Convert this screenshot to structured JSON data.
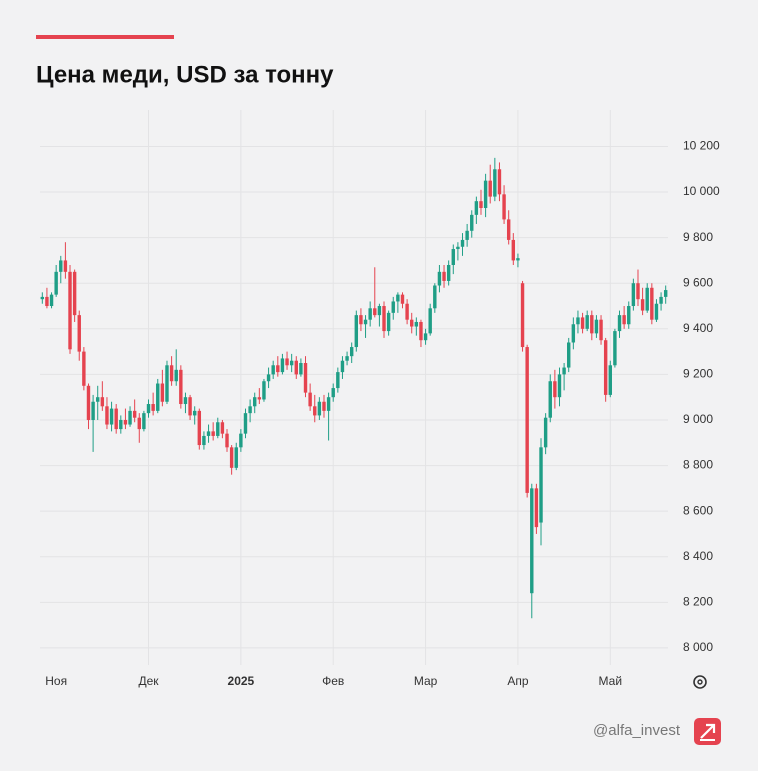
{
  "chart_data": {
    "type": "candlestick",
    "title": "Цена меди, USD за тонну",
    "footer": "@alfa_invest",
    "up_color": "#1f9e86",
    "down_color": "#e5434f",
    "grid": true,
    "ylim": [
      7925,
      10360
    ],
    "yticks": [
      {
        "value": 8000,
        "label": "8 000"
      },
      {
        "value": 8200,
        "label": "8 200"
      },
      {
        "value": 8400,
        "label": "8 400"
      },
      {
        "value": 8600,
        "label": "8 600"
      },
      {
        "value": 8800,
        "label": "8 800"
      },
      {
        "value": 9000,
        "label": "9 000"
      },
      {
        "value": 9200,
        "label": "9 200"
      },
      {
        "value": 9400,
        "label": "9 400"
      },
      {
        "value": 9600,
        "label": "9 600"
      },
      {
        "value": 9800,
        "label": "9 800"
      },
      {
        "value": 10000,
        "label": "10 000"
      },
      {
        "value": 10200,
        "label": "10 200"
      }
    ],
    "categories": [
      null,
      null,
      null,
      "Ноя",
      null,
      null,
      null,
      null,
      null,
      null,
      null,
      null,
      null,
      null,
      null,
      null,
      null,
      null,
      null,
      null,
      null,
      null,
      null,
      "Дек",
      null,
      null,
      null,
      null,
      null,
      null,
      null,
      null,
      null,
      null,
      null,
      null,
      null,
      null,
      null,
      null,
      null,
      null,
      null,
      "2025",
      null,
      null,
      null,
      null,
      null,
      null,
      null,
      null,
      null,
      null,
      null,
      null,
      null,
      null,
      null,
      null,
      null,
      null,
      null,
      "Фев",
      null,
      null,
      null,
      null,
      null,
      null,
      null,
      null,
      null,
      null,
      null,
      null,
      null,
      null,
      null,
      null,
      null,
      null,
      null,
      "Мар",
      null,
      null,
      null,
      null,
      null,
      null,
      null,
      null,
      null,
      null,
      null,
      null,
      null,
      null,
      null,
      null,
      null,
      null,
      null,
      "Апр",
      null,
      null,
      null,
      null,
      null,
      null,
      null,
      null,
      null,
      null,
      null,
      null,
      null,
      null,
      null,
      null,
      null,
      null,
      null,
      "Май",
      null,
      null,
      null,
      null,
      null,
      null,
      null,
      null,
      null,
      null,
      null,
      null
    ],
    "ohlc": {
      "open": [
        9530,
        9540,
        9500,
        9550,
        9650,
        9700,
        9650,
        9650,
        9460,
        9300,
        9150,
        9000,
        9080,
        9100,
        9060,
        8980,
        9050,
        8960,
        9000,
        8980,
        9040,
        9010,
        8960,
        9030,
        9070,
        9040,
        9160,
        9080,
        9240,
        9170,
        9220,
        9070,
        9100,
        9020,
        9040,
        8890,
        8930,
        8950,
        8930,
        8990,
        8940,
        8880,
        8790,
        8880,
        8940,
        9030,
        9060,
        9100,
        9090,
        9170,
        9200,
        9240,
        9210,
        9270,
        9240,
        9260,
        9200,
        9250,
        9120,
        9060,
        9020,
        9080,
        9040,
        9100,
        9140,
        9210,
        9260,
        9280,
        9320,
        9460,
        9420,
        9440,
        9490,
        9460,
        9500,
        9390,
        9470,
        9520,
        9550,
        9510,
        9440,
        9410,
        9430,
        9350,
        9380,
        9490,
        9590,
        9650,
        9610,
        9680,
        9750,
        9760,
        9790,
        9830,
        9900,
        9960,
        9930,
        10050,
        9980,
        10100,
        9990,
        9880,
        9790,
        9700,
        9600,
        9320,
        8240,
        8700,
        8550,
        8880,
        9010,
        9170,
        9100,
        9200,
        9230,
        9340,
        9420,
        9450,
        9400,
        9460,
        9380,
        9440,
        9350,
        9110,
        9240,
        9390,
        9460,
        9420,
        9500,
        9600,
        9530,
        9480,
        9580,
        9440,
        9510,
        9540
      ],
      "high": [
        9560,
        9580,
        9560,
        9680,
        9720,
        9780,
        9680,
        9660,
        9480,
        9320,
        9160,
        9110,
        9150,
        9170,
        9100,
        9080,
        9070,
        9020,
        9050,
        9060,
        9090,
        9030,
        9040,
        9090,
        9120,
        9180,
        9220,
        9260,
        9280,
        9310,
        9240,
        9120,
        9110,
        9060,
        9050,
        8950,
        8980,
        8990,
        9010,
        9000,
        8960,
        8890,
        8900,
        8960,
        9050,
        9090,
        9120,
        9140,
        9180,
        9230,
        9260,
        9280,
        9290,
        9300,
        9290,
        9280,
        9270,
        9280,
        9160,
        9110,
        9100,
        9110,
        9120,
        9160,
        9230,
        9280,
        9300,
        9340,
        9480,
        9490,
        9460,
        9520,
        9670,
        9510,
        9520,
        9480,
        9540,
        9560,
        9560,
        9530,
        9470,
        9450,
        9440,
        9400,
        9510,
        9600,
        9680,
        9680,
        9700,
        9770,
        9780,
        9820,
        9860,
        9920,
        9980,
        10010,
        10080,
        10120,
        10150,
        10130,
        10030,
        9920,
        9820,
        9730,
        9610,
        9330,
        8720,
        8720,
        8920,
        9030,
        9200,
        9220,
        9230,
        9250,
        9360,
        9450,
        9480,
        9470,
        9480,
        9480,
        9460,
        9460,
        9360,
        9260,
        9400,
        9480,
        9500,
        9520,
        9620,
        9660,
        9580,
        9600,
        9600,
        9530,
        9560,
        9590
      ],
      "low": [
        9510,
        9490,
        9490,
        9540,
        9600,
        9620,
        9290,
        9430,
        9260,
        9130,
        8960,
        8860,
        9000,
        9040,
        8960,
        8950,
        8940,
        8940,
        8960,
        8970,
        8990,
        8900,
        8950,
        9010,
        9020,
        9030,
        9060,
        9070,
        9150,
        9150,
        9050,
        9030,
        9000,
        8980,
        8870,
        8870,
        8900,
        8910,
        8920,
        8920,
        8860,
        8760,
        8780,
        8860,
        8920,
        8990,
        9030,
        9070,
        9080,
        9140,
        9180,
        9190,
        9200,
        9220,
        9210,
        9180,
        9190,
        9100,
        9040,
        8990,
        9000,
        9010,
        8910,
        9080,
        9120,
        9180,
        9240,
        9250,
        9300,
        9390,
        9360,
        9410,
        9450,
        9410,
        9360,
        9370,
        9440,
        9470,
        9490,
        9420,
        9380,
        9370,
        9320,
        9330,
        9370,
        9470,
        9560,
        9580,
        9590,
        9640,
        9700,
        9720,
        9760,
        9800,
        9860,
        9900,
        9890,
        9950,
        9960,
        9960,
        9860,
        9770,
        9680,
        9670,
        9300,
        8660,
        8130,
        8500,
        8450,
        8850,
        8990,
        9050,
        9060,
        9130,
        9210,
        9310,
        9380,
        9380,
        9390,
        9350,
        9360,
        9330,
        9080,
        9100,
        9230,
        9360,
        9400,
        9400,
        9480,
        9500,
        9460,
        9470,
        9420,
        9430,
        9480,
        9510
      ],
      "close": [
        9540,
        9500,
        9550,
        9650,
        9700,
        9650,
        9310,
        9460,
        9300,
        9150,
        9000,
        9080,
        9100,
        9060,
        8980,
        9050,
        8960,
        9000,
        8980,
        9040,
        9010,
        8960,
        9030,
        9070,
        9040,
        9160,
        9080,
        9240,
        9170,
        9220,
        9070,
        9100,
        9020,
        9040,
        8890,
        8930,
        8950,
        8930,
        8990,
        8940,
        8880,
        8790,
        8880,
        8940,
        9030,
        9060,
        9100,
        9090,
        9170,
        9200,
        9240,
        9210,
        9270,
        9240,
        9260,
        9200,
        9250,
        9120,
        9060,
        9020,
        9080,
        9040,
        9100,
        9140,
        9210,
        9260,
        9280,
        9320,
        9460,
        9420,
        9440,
        9490,
        9460,
        9500,
        9390,
        9470,
        9520,
        9550,
        9510,
        9440,
        9410,
        9430,
        9350,
        9380,
        9490,
        9590,
        9650,
        9610,
        9680,
        9750,
        9760,
        9790,
        9830,
        9900,
        9960,
        9930,
        10050,
        9980,
        10100,
        9990,
        9880,
        9790,
        9700,
        9710,
        9320,
        8680,
        8700,
        8530,
        8880,
        9010,
        9170,
        9100,
        9200,
        9230,
        9340,
        9420,
        9450,
        9400,
        9460,
        9380,
        9440,
        9350,
        9110,
        9240,
        9390,
        9460,
        9420,
        9500,
        9600,
        9530,
        9480,
        9580,
        9440,
        9510,
        9540,
        9570
      ]
    }
  }
}
